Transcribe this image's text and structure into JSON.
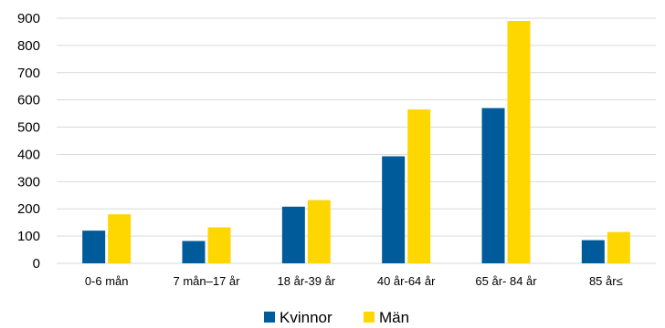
{
  "chart_data": {
    "type": "bar",
    "categories": [
      "0-6 mån",
      "7 mån–17 år",
      "18 år-39 år",
      "40 år-64 år",
      "65 år- 84 år",
      "85 år≤"
    ],
    "series": [
      {
        "name": "Kvinnor",
        "values": [
          120,
          82,
          208,
          393,
          570,
          85
        ],
        "color": "#005B9A"
      },
      {
        "name": "Män",
        "values": [
          180,
          132,
          232,
          565,
          890,
          115
        ],
        "color": "#FFD700"
      }
    ],
    "ylim": [
      0,
      900
    ],
    "yticks": [
      "0",
      "100",
      "200",
      "300",
      "400",
      "500",
      "600",
      "700",
      "800",
      "900"
    ],
    "grid": true,
    "legend_position": "bottom",
    "title": "",
    "xlabel": "",
    "ylabel": ""
  }
}
